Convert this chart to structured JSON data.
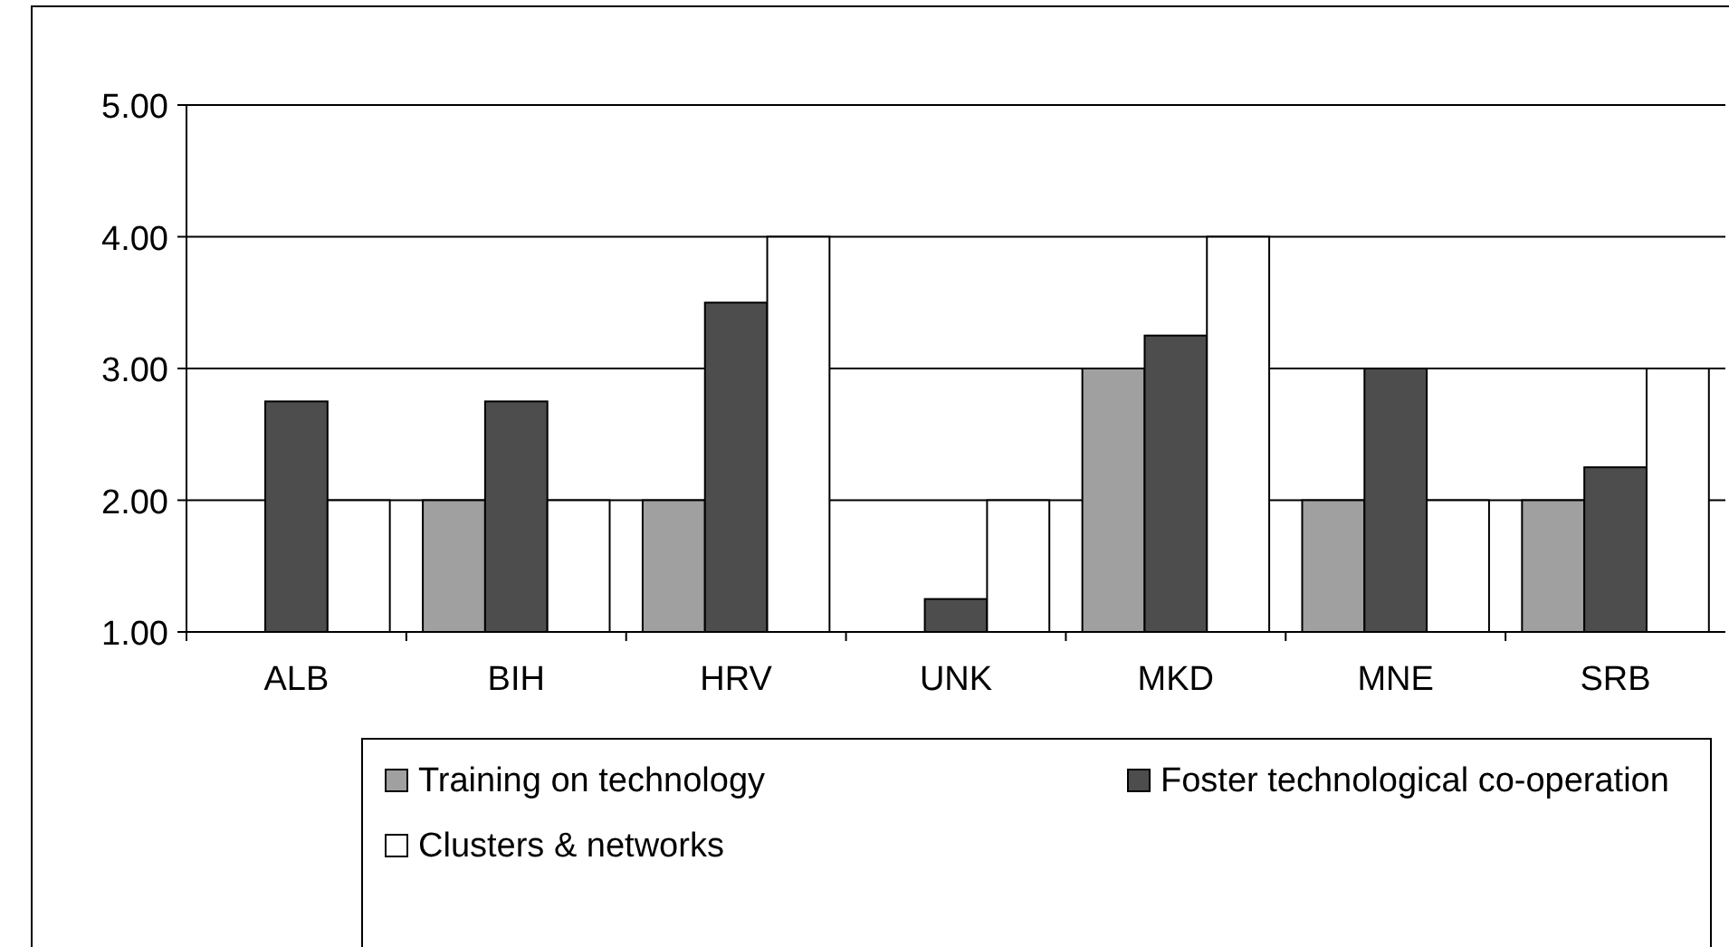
{
  "chart_data": {
    "type": "bar",
    "categories": [
      "ALB",
      "BIH",
      "HRV",
      "UNK",
      "MKD",
      "MNE",
      "SRB"
    ],
    "series": [
      {
        "name": "Training on technology",
        "color": "#a0a0a0",
        "values": [
          null,
          2,
          2,
          null,
          3,
          2,
          2
        ]
      },
      {
        "name": "Foster technological co-operation",
        "color": "#4d4d4d",
        "values": [
          2.75,
          2.75,
          3.5,
          1.25,
          3.25,
          3,
          2.25
        ]
      },
      {
        "name": "Clusters & networks",
        "color": "#ffffff",
        "values": [
          2,
          2,
          4,
          2,
          4,
          2,
          3
        ]
      }
    ],
    "ylim": [
      1,
      5
    ],
    "yticks": [
      {
        "value": 1,
        "label": "1.00"
      },
      {
        "value": 2,
        "label": "2.00"
      },
      {
        "value": 3,
        "label": "3.00"
      },
      {
        "value": 4,
        "label": "4.00"
      },
      {
        "value": 5,
        "label": "5.00"
      }
    ],
    "grid": "y",
    "legend": "bottom"
  }
}
